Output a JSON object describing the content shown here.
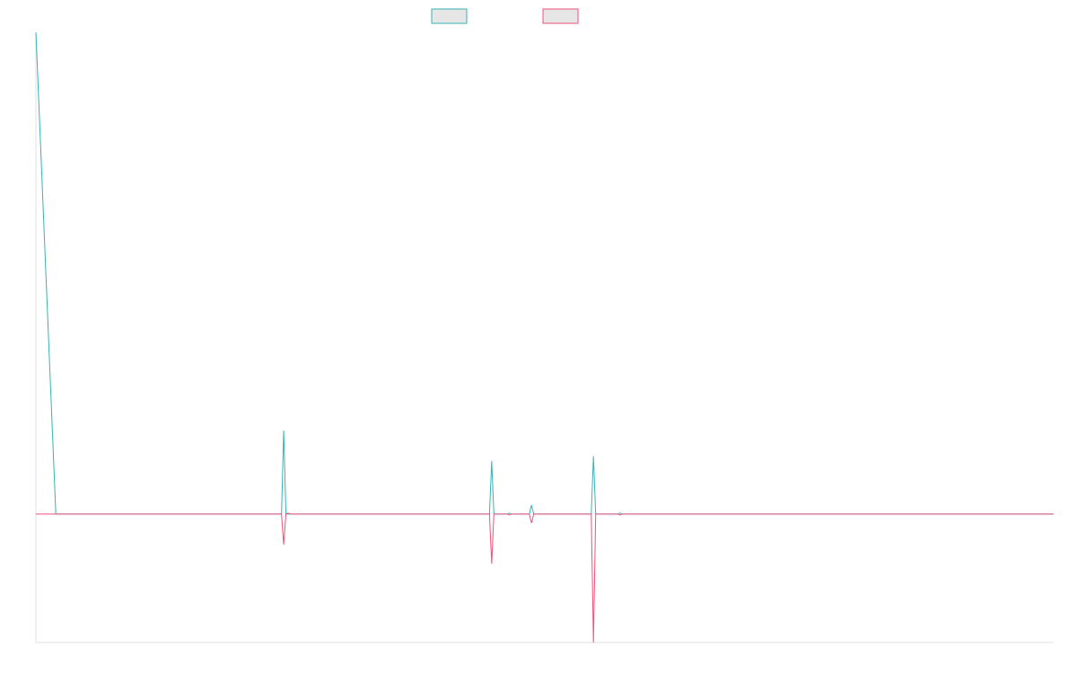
{
  "chart_data": {
    "type": "line",
    "title": "",
    "xlabel": "",
    "ylabel": "",
    "grid": false,
    "legend_position": "top-center",
    "x_labels_shown": false,
    "y_labels_shown": false,
    "x": [
      0,
      4.5,
      5,
      55.5,
      56,
      56.5,
      57,
      57.5,
      102.5,
      103,
      103.5,
      106.5,
      107,
      107.5,
      111.5,
      112,
      112.5,
      125.5,
      126,
      126.5,
      131.5,
      132,
      132.5,
      230
    ],
    "xlim": [
      0,
      230
    ],
    "ylim": [
      -0.4,
      1.5
    ],
    "series": [
      {
        "name": "",
        "color": "#36b3b7",
        "values": [
          1.5,
          0,
          0,
          0,
          0.26,
          0,
          0,
          0,
          0,
          0.165,
          0,
          0,
          0.003,
          0,
          0,
          0.028,
          0,
          0,
          0.18,
          0,
          0,
          0.003,
          0,
          0
        ]
      },
      {
        "name": "",
        "color": "#f0507a",
        "values": [
          0,
          0,
          0,
          0,
          -0.095,
          0,
          0.003,
          0,
          0,
          -0.155,
          0,
          0,
          -0.003,
          0,
          0,
          -0.028,
          0,
          0,
          -0.4,
          0,
          0,
          -0.003,
          0,
          0
        ]
      }
    ]
  }
}
